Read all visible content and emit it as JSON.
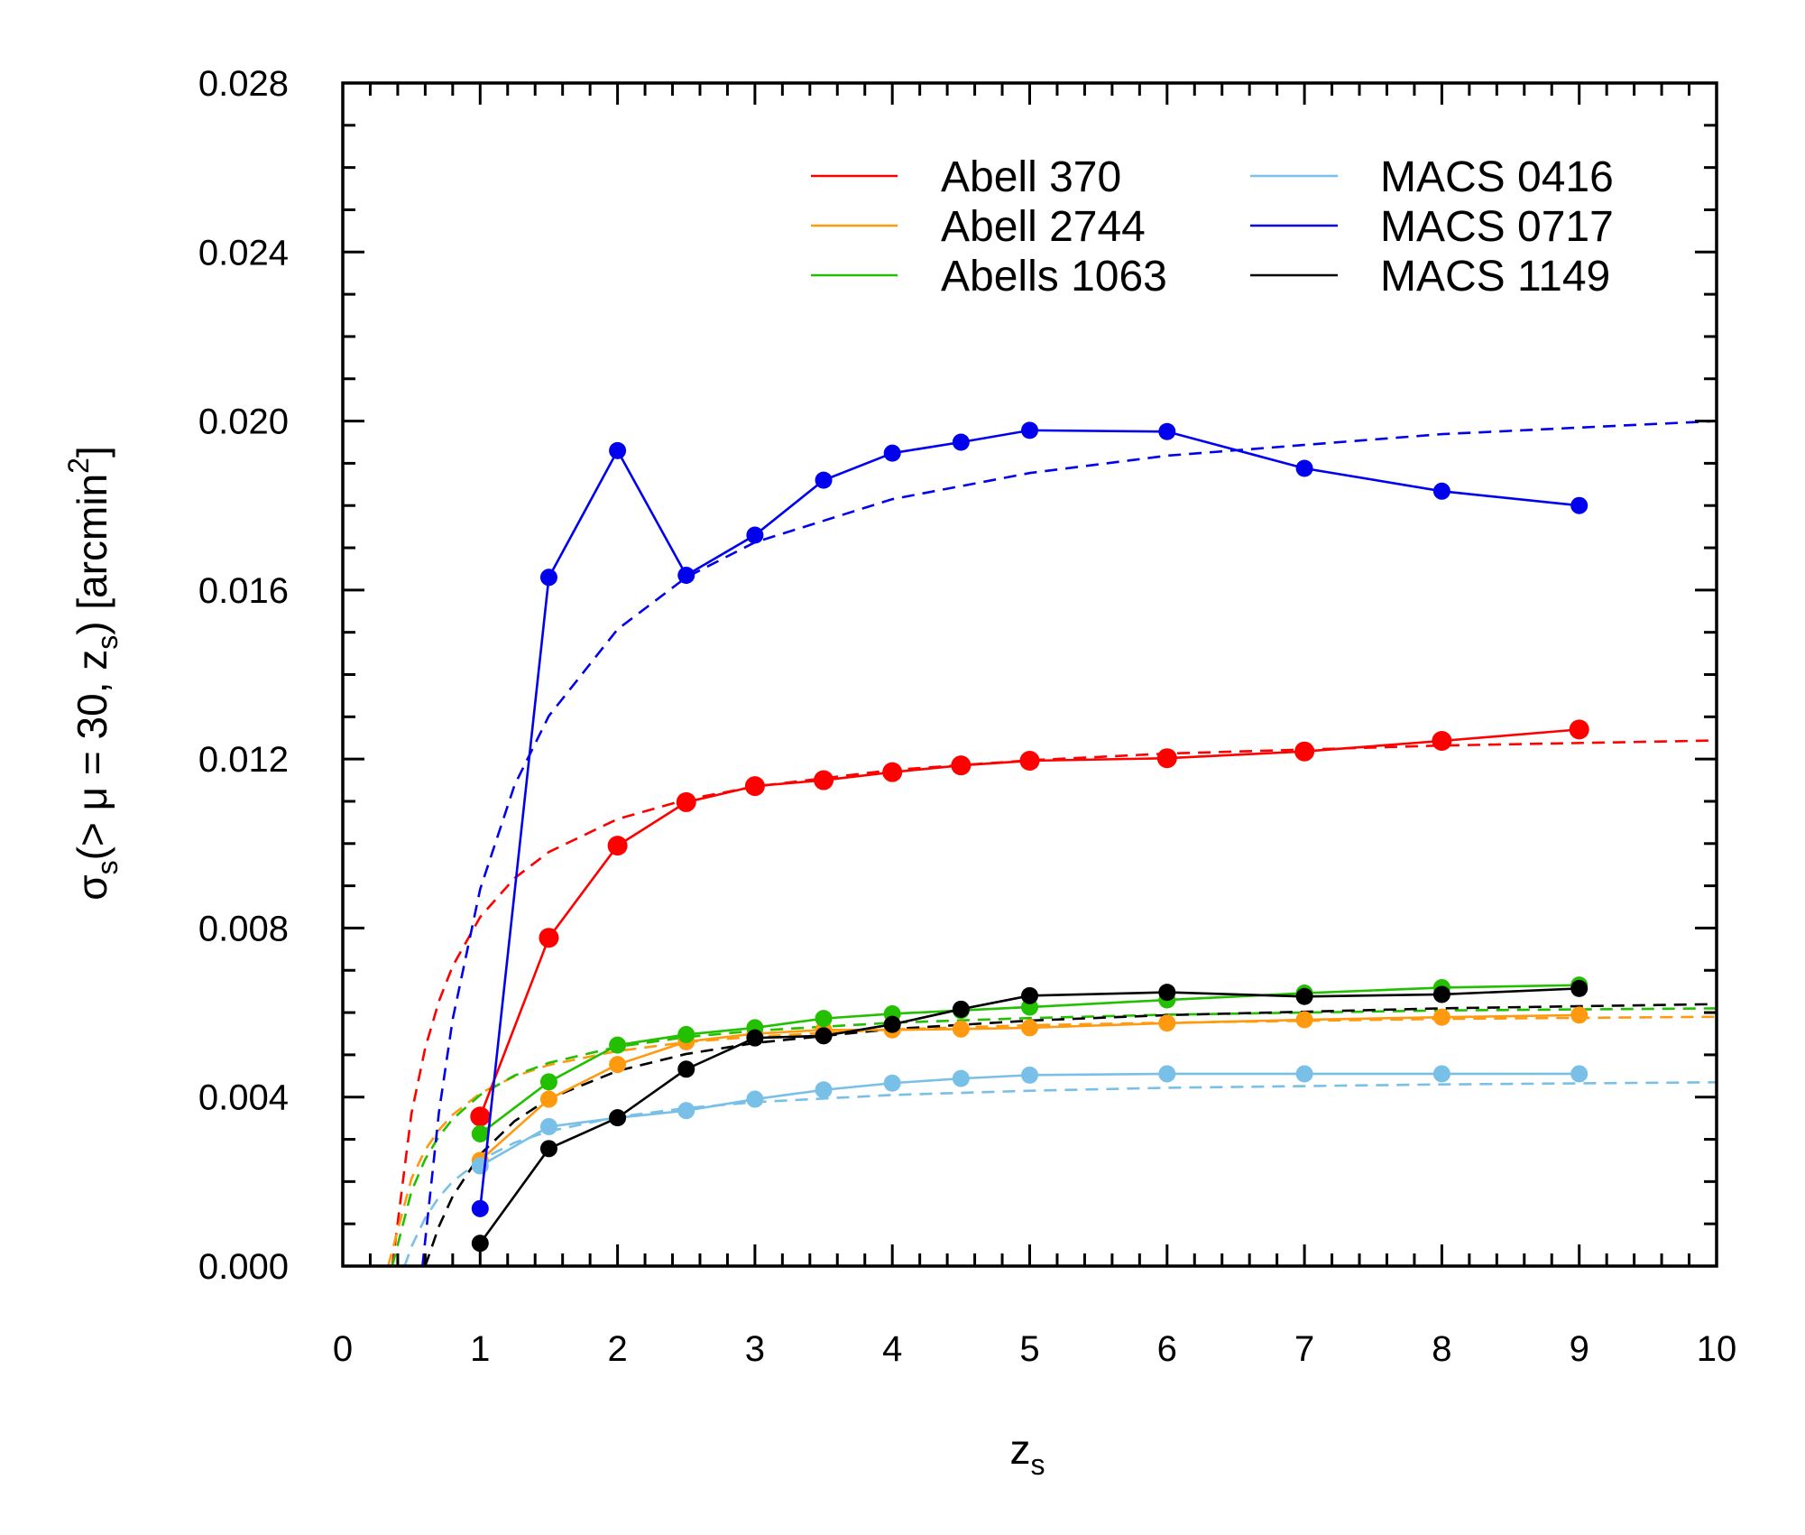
{
  "chart_data": {
    "type": "line",
    "title": "",
    "xlabel": {
      "main": "z",
      "sub": "s"
    },
    "ylabel": {
      "parts": [
        {
          "t": "σ",
          "sub": false
        },
        {
          "t": "s",
          "sub": true
        },
        {
          "t": "(> μ = 30, ",
          "sub": false
        },
        {
          "t": "z",
          "sub": false
        },
        {
          "t": "s",
          "sub": true
        },
        {
          "t": ") [arcmin",
          "sub": false
        },
        {
          "t": "2",
          "sup": true
        },
        {
          "t": "]",
          "sub": false
        }
      ]
    },
    "xlim": [
      0,
      10
    ],
    "ylim": [
      0,
      0.028
    ],
    "xticks": [
      "0",
      "1",
      "2",
      "3",
      "4",
      "5",
      "6",
      "7",
      "8",
      "9",
      "10"
    ],
    "yticks": [
      "0.000",
      "0.004",
      "0.008",
      "0.012",
      "0.016",
      "0.020",
      "0.024",
      "0.028"
    ],
    "grid": false,
    "legend_placement": "top-right",
    "series": [
      {
        "name": "Abell 370",
        "color": "#ff0000",
        "x": [
          1,
          1.5,
          2,
          2.5,
          3,
          3.5,
          4,
          4.5,
          5,
          6,
          7,
          8,
          9
        ],
        "y": [
          0.00354,
          0.00777,
          0.00995,
          0.01098,
          0.01136,
          0.0115,
          0.01169,
          0.01185,
          0.01196,
          0.01202,
          0.01218,
          0.01243,
          0.0127
        ],
        "fit_x": [
          0.36,
          0.5,
          0.6,
          0.7,
          0.8,
          1,
          1.25,
          1.5,
          2,
          2.5,
          3,
          4,
          5,
          6,
          8,
          10
        ],
        "fit_y": [
          0,
          0.00361,
          0.00516,
          0.00627,
          0.0071,
          0.00826,
          0.00918,
          0.0098,
          0.01058,
          0.01104,
          0.01135,
          0.01174,
          0.01197,
          0.01213,
          0.01232,
          0.01244
        ]
      },
      {
        "name": "Abell 2744",
        "color": "#ff9a10",
        "x": [
          1,
          1.5,
          2,
          2.5,
          3,
          3.5,
          4,
          4.5,
          5,
          6,
          7,
          8,
          9
        ],
        "y": [
          0.0025,
          0.00395,
          0.00477,
          0.00531,
          0.0055,
          0.00559,
          0.00559,
          0.00561,
          0.00564,
          0.00575,
          0.00583,
          0.00589,
          0.00594
        ],
        "fit_x": [
          0.33,
          0.5,
          0.6,
          0.7,
          0.8,
          1,
          1.25,
          1.5,
          2,
          2.5,
          3,
          4,
          5,
          6,
          8,
          10
        ],
        "fit_y": [
          0,
          0.00207,
          0.00275,
          0.00322,
          0.00358,
          0.00409,
          0.00449,
          0.00476,
          0.00509,
          0.0053,
          0.00543,
          0.0056,
          0.0057,
          0.00576,
          0.00585,
          0.0059
        ]
      },
      {
        "name": "Abells 1063",
        "color": "#22c000",
        "x": [
          1,
          1.5,
          2,
          2.5,
          3,
          3.5,
          4,
          4.5,
          5,
          6,
          7,
          8,
          9
        ],
        "y": [
          0.00313,
          0.00436,
          0.00523,
          0.00548,
          0.00564,
          0.00586,
          0.00597,
          0.00605,
          0.00613,
          0.0063,
          0.00646,
          0.00659,
          0.00665
        ],
        "fit_x": [
          0.36,
          0.5,
          0.6,
          0.7,
          0.8,
          1,
          1.25,
          1.5,
          2,
          2.5,
          3,
          4,
          5,
          6,
          8,
          10
        ],
        "fit_y": [
          0,
          0.00177,
          0.00253,
          0.00307,
          0.00348,
          0.00405,
          0.00451,
          0.00481,
          0.00519,
          0.00542,
          0.00557,
          0.00576,
          0.00587,
          0.00595,
          0.00605,
          0.0061
        ]
      },
      {
        "name": "MACS 0416",
        "color": "#78c0e8",
        "x": [
          1,
          1.5,
          2,
          2.5,
          3,
          3.5,
          4,
          4.5,
          5,
          6,
          7,
          8,
          9
        ],
        "y": [
          0.00237,
          0.0033,
          0.00351,
          0.00368,
          0.00395,
          0.00417,
          0.00433,
          0.00444,
          0.00452,
          0.00455,
          0.00455,
          0.00455,
          0.00455
        ],
        "fit_x": [
          0.45,
          0.5,
          0.6,
          0.7,
          0.8,
          1,
          1.25,
          1.5,
          2,
          2.5,
          3,
          4,
          5,
          6,
          8,
          10
        ],
        "fit_y": [
          0,
          0.00046,
          0.00114,
          0.00163,
          0.002,
          0.00251,
          0.00292,
          0.00319,
          0.00353,
          0.00374,
          0.00388,
          0.00405,
          0.00415,
          0.00422,
          0.0043,
          0.00435
        ]
      },
      {
        "name": "MACS 0717",
        "color": "#0000ee",
        "x": [
          1,
          1.5,
          2,
          2.5,
          3,
          3.5,
          4,
          4.5,
          5,
          6,
          7,
          8,
          9
        ],
        "y": [
          0.00136,
          0.0163,
          0.0193,
          0.01635,
          0.0173,
          0.0186,
          0.01924,
          0.0195,
          0.01978,
          0.01975,
          0.01888,
          0.01834,
          0.018
        ],
        "fit_x": [
          0.58,
          0.7,
          0.8,
          1,
          1.25,
          1.5,
          2,
          2.5,
          3,
          4,
          5,
          6,
          8,
          10
        ],
        "fit_y": [
          0,
          0.00364,
          0.00584,
          0.00892,
          0.01138,
          0.01302,
          0.01507,
          0.0163,
          0.01713,
          0.01815,
          0.01877,
          0.01918,
          0.01969,
          0.02
        ]
      },
      {
        "name": "MACS 1149",
        "color": "#000000",
        "x": [
          1,
          1.5,
          2,
          2.5,
          3,
          3.5,
          4,
          4.5,
          5,
          6,
          7,
          8,
          9
        ],
        "y": [
          0.00054,
          0.00278,
          0.00351,
          0.00466,
          0.0054,
          0.00545,
          0.00572,
          0.00608,
          0.0064,
          0.00648,
          0.00638,
          0.00643,
          0.00657
        ],
        "fit_x": [
          0.6,
          0.7,
          0.8,
          1,
          1.25,
          1.5,
          2,
          2.5,
          3,
          4,
          5,
          6,
          8,
          10
        ],
        "fit_y": [
          0,
          0.00094,
          0.00165,
          0.00264,
          0.00343,
          0.00396,
          0.00462,
          0.00502,
          0.00528,
          0.00561,
          0.00581,
          0.00594,
          0.0061,
          0.0062
        ]
      }
    ]
  }
}
